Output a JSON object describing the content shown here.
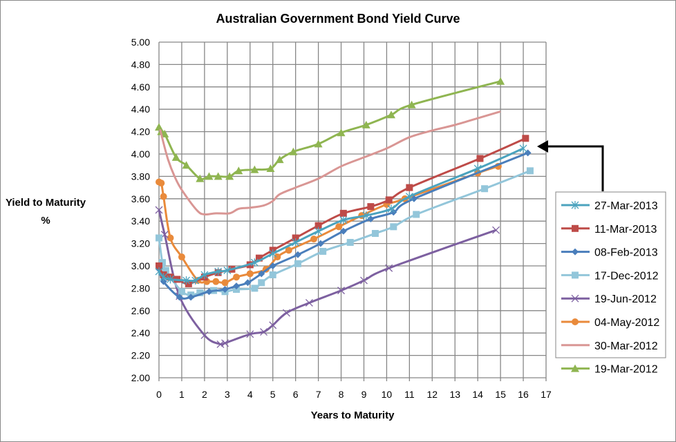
{
  "chart_data": {
    "type": "line",
    "title": "Australian Government Bond Yield Curve",
    "xlabel": "Years to Maturity",
    "ylabel": [
      "Yield to Maturity",
      "%"
    ],
    "xlim": [
      0,
      17
    ],
    "ylim": [
      2.0,
      5.0
    ],
    "xticks": [
      "0",
      "1",
      "2",
      "3",
      "4",
      "5",
      "6",
      "7",
      "8",
      "9",
      "10",
      "11",
      "12",
      "13",
      "14",
      "15",
      "16",
      "17"
    ],
    "yticks": [
      "2.00",
      "2.20",
      "2.40",
      "2.60",
      "2.80",
      "3.00",
      "3.20",
      "3.40",
      "3.60",
      "3.80",
      "4.00",
      "4.20",
      "4.40",
      "4.60",
      "4.80",
      "5.00"
    ],
    "grid": true,
    "legend_position": "right",
    "annotation": "arrow pointing to the 2013 curves' long end",
    "series": [
      {
        "name": "27-Mar-2013",
        "color": "#4BA3BE",
        "marker": "asterisk",
        "points": [
          [
            0,
            2.95
          ],
          [
            0.2,
            2.9
          ],
          [
            0.5,
            2.88
          ],
          [
            1.2,
            2.87
          ],
          [
            1.6,
            2.87
          ],
          [
            2.0,
            2.92
          ],
          [
            2.6,
            2.95
          ],
          [
            3.0,
            2.96
          ],
          [
            4.2,
            3.03
          ],
          [
            5.0,
            3.11
          ],
          [
            6.0,
            3.21
          ],
          [
            7.0,
            3.31
          ],
          [
            8.1,
            3.41
          ],
          [
            9.1,
            3.45
          ],
          [
            10.2,
            3.51
          ],
          [
            11.0,
            3.62
          ],
          [
            14.0,
            3.87
          ],
          [
            16.0,
            4.05
          ]
        ]
      },
      {
        "name": "11-Mar-2013",
        "color": "#BE4B48",
        "marker": "square",
        "points": [
          [
            0,
            3.0
          ],
          [
            0.2,
            2.92
          ],
          [
            0.5,
            2.9
          ],
          [
            0.8,
            2.88
          ],
          [
            1.3,
            2.84
          ],
          [
            2.0,
            2.9
          ],
          [
            2.6,
            2.94
          ],
          [
            3.2,
            2.97
          ],
          [
            4.0,
            3.01
          ],
          [
            4.4,
            3.07
          ],
          [
            5.0,
            3.14
          ],
          [
            6.0,
            3.25
          ],
          [
            7.0,
            3.36
          ],
          [
            8.1,
            3.47
          ],
          [
            9.3,
            3.53
          ],
          [
            10.1,
            3.59
          ],
          [
            11.0,
            3.7
          ],
          [
            14.1,
            3.96
          ],
          [
            16.1,
            4.14
          ]
        ]
      },
      {
        "name": "08-Feb-2013",
        "color": "#4A7EBB",
        "marker": "diamond",
        "points": [
          [
            0,
            2.97
          ],
          [
            0.2,
            2.86
          ],
          [
            0.9,
            2.72
          ],
          [
            1.4,
            2.72
          ],
          [
            2.2,
            2.77
          ],
          [
            2.9,
            2.79
          ],
          [
            3.4,
            2.82
          ],
          [
            3.9,
            2.85
          ],
          [
            4.5,
            2.93
          ],
          [
            5.0,
            3.0
          ],
          [
            6.1,
            3.1
          ],
          [
            7.1,
            3.2
          ],
          [
            8.1,
            3.31
          ],
          [
            9.3,
            3.42
          ],
          [
            10.3,
            3.48
          ],
          [
            11.2,
            3.6
          ],
          [
            16.2,
            4.01
          ]
        ]
      },
      {
        "name": "17-Dec-2012",
        "color": "#93C6DA",
        "marker": "square",
        "points": [
          [
            0,
            3.25
          ],
          [
            0.15,
            3.03
          ],
          [
            0.3,
            2.96
          ],
          [
            0.5,
            2.9
          ],
          [
            1.0,
            2.77
          ],
          [
            1.4,
            2.74
          ],
          [
            1.8,
            2.76
          ],
          [
            2.4,
            2.78
          ],
          [
            2.9,
            2.77
          ],
          [
            3.4,
            2.79
          ],
          [
            4.2,
            2.8
          ],
          [
            4.5,
            2.85
          ],
          [
            5.0,
            2.92
          ],
          [
            6.1,
            3.02
          ],
          [
            7.2,
            3.13
          ],
          [
            8.4,
            3.21
          ],
          [
            9.5,
            3.29
          ],
          [
            10.3,
            3.35
          ],
          [
            11.3,
            3.46
          ],
          [
            14.3,
            3.69
          ],
          [
            16.3,
            3.85
          ]
        ]
      },
      {
        "name": "19-Jun-2012",
        "color": "#7D60A0",
        "marker": "x",
        "points": [
          [
            0,
            3.5
          ],
          [
            0.25,
            3.28
          ],
          [
            0.9,
            2.73
          ],
          [
            2.0,
            2.38
          ],
          [
            2.7,
            2.3
          ],
          [
            2.9,
            2.31
          ],
          [
            4.0,
            2.39
          ],
          [
            4.6,
            2.41
          ],
          [
            5.0,
            2.47
          ],
          [
            5.6,
            2.58
          ],
          [
            6.6,
            2.67
          ],
          [
            8.0,
            2.78
          ],
          [
            9.0,
            2.87
          ],
          [
            10.1,
            2.98
          ],
          [
            14.8,
            3.32
          ]
        ]
      },
      {
        "name": "04-May-2012",
        "color": "#E98A3B",
        "marker": "circle",
        "points": [
          [
            0,
            3.75
          ],
          [
            0.1,
            3.74
          ],
          [
            0.2,
            3.62
          ],
          [
            0.5,
            3.25
          ],
          [
            1.0,
            3.08
          ],
          [
            1.7,
            2.87
          ],
          [
            2.1,
            2.86
          ],
          [
            2.5,
            2.86
          ],
          [
            2.9,
            2.85
          ],
          [
            3.4,
            2.9
          ],
          [
            4.0,
            2.93
          ],
          [
            4.7,
            2.97
          ],
          [
            5.2,
            3.08
          ],
          [
            5.7,
            3.14
          ],
          [
            6.8,
            3.24
          ],
          [
            7.9,
            3.35
          ],
          [
            8.9,
            3.45
          ],
          [
            10.0,
            3.55
          ],
          [
            10.8,
            3.6
          ],
          [
            14.0,
            3.83
          ],
          [
            14.9,
            3.89
          ]
        ]
      },
      {
        "name": "30-Mar-2012",
        "color": "#D99694",
        "marker": "none",
        "points": [
          [
            0.05,
            4.22
          ],
          [
            0.4,
            3.95
          ],
          [
            0.8,
            3.75
          ],
          [
            1.2,
            3.62
          ],
          [
            1.7,
            3.49
          ],
          [
            2.0,
            3.46
          ],
          [
            2.5,
            3.47
          ],
          [
            3.1,
            3.47
          ],
          [
            3.5,
            3.51
          ],
          [
            4.0,
            3.52
          ],
          [
            4.6,
            3.54
          ],
          [
            5.0,
            3.58
          ],
          [
            5.3,
            3.64
          ],
          [
            6.0,
            3.7
          ],
          [
            7.0,
            3.78
          ],
          [
            8.0,
            3.89
          ],
          [
            9.0,
            3.97
          ],
          [
            10.0,
            4.05
          ],
          [
            11.0,
            4.15
          ],
          [
            12.0,
            4.21
          ],
          [
            13.0,
            4.26
          ],
          [
            14.0,
            4.32
          ],
          [
            15.0,
            4.38
          ]
        ]
      },
      {
        "name": "19-Mar-2012",
        "color": "#8FB551",
        "marker": "triangle",
        "points": [
          [
            0,
            4.24
          ],
          [
            0.1,
            4.2
          ],
          [
            0.25,
            4.18
          ],
          [
            0.75,
            3.97
          ],
          [
            1.2,
            3.9
          ],
          [
            1.8,
            3.78
          ],
          [
            2.2,
            3.8
          ],
          [
            2.6,
            3.8
          ],
          [
            3.1,
            3.8
          ],
          [
            3.5,
            3.85
          ],
          [
            4.2,
            3.86
          ],
          [
            4.9,
            3.87
          ],
          [
            5.3,
            3.95
          ],
          [
            5.9,
            4.02
          ],
          [
            7.0,
            4.09
          ],
          [
            8.0,
            4.19
          ],
          [
            9.1,
            4.26
          ],
          [
            10.2,
            4.35
          ],
          [
            11.1,
            4.44
          ],
          [
            15.0,
            4.65
          ]
        ]
      }
    ]
  }
}
